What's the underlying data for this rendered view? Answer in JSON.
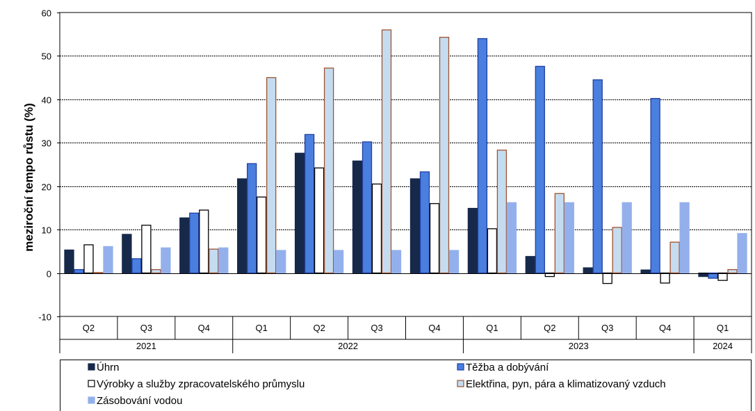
{
  "chart_data": {
    "type": "bar",
    "title": "",
    "xlabel": "",
    "ylabel": "meziroční tempo růstu (%)",
    "ylim": [
      -10,
      60
    ],
    "yticks": [
      -10,
      0,
      10,
      20,
      30,
      40,
      50,
      60
    ],
    "grid": true,
    "legend_position": "bottom",
    "categories": [
      "Q2",
      "Q3",
      "Q4",
      "Q1",
      "Q2",
      "Q3",
      "Q4",
      "Q1",
      "Q2",
      "Q3",
      "Q4",
      "Q1"
    ],
    "year_groups": [
      {
        "label": "2021",
        "count": 3
      },
      {
        "label": "2022",
        "count": 4
      },
      {
        "label": "2023",
        "count": 4
      },
      {
        "label": "2024",
        "count": 1
      }
    ],
    "series": [
      {
        "name": "Úhrn",
        "fill": "#17294a",
        "stroke": "#17294a",
        "values": [
          5.3,
          8.9,
          12.7,
          21.7,
          27.6,
          25.8,
          21.7,
          14.9,
          3.8,
          1.2,
          0.7,
          -0.8
        ]
      },
      {
        "name": "Těžba a dobývání",
        "fill": "#4a7fe0",
        "stroke": "#1f3fa0",
        "values": [
          0.8,
          3.3,
          13.8,
          25.2,
          31.9,
          30.2,
          23.3,
          54.0,
          47.6,
          44.5,
          40.2,
          -1.2
        ]
      },
      {
        "name": "Výrobky a služby zpracovatelského průmyslu",
        "fill": "#ffffff",
        "stroke": "#000000",
        "values": [
          6.5,
          11.0,
          14.5,
          17.5,
          24.2,
          20.5,
          16.0,
          10.2,
          -0.8,
          -2.4,
          -2.3,
          -1.7
        ]
      },
      {
        "name": "Elektřina, pyn, pára a klimatizovaný vzduch",
        "fill": "#c5dcf0",
        "stroke": "#a0522d",
        "values": [
          0.1,
          0.8,
          5.5,
          45.0,
          47.2,
          56.0,
          54.3,
          28.3,
          18.3,
          10.5,
          7.1,
          0.8
        ]
      },
      {
        "name": "Zásobování vodou",
        "fill": "#94b0ec",
        "stroke": "#94b0ec",
        "values": [
          6.1,
          5.8,
          5.8,
          5.2,
          5.2,
          5.2,
          5.2,
          16.2,
          16.2,
          16.2,
          16.2,
          9.1
        ]
      }
    ]
  }
}
